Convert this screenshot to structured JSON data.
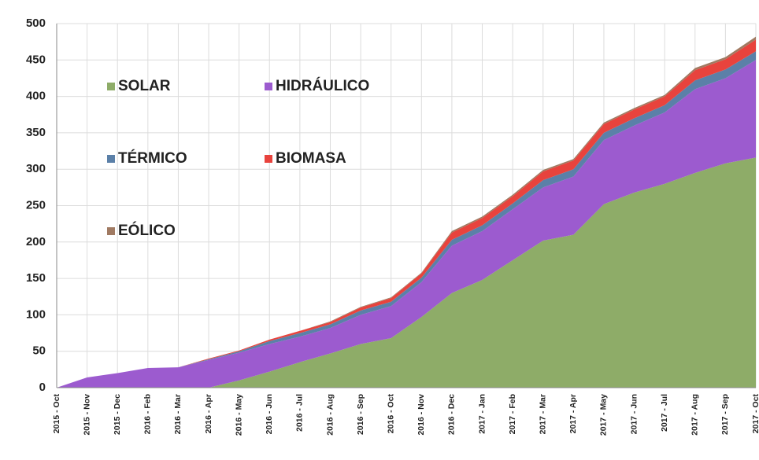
{
  "chart_data": {
    "type": "stacked_area",
    "categories": [
      "2015 - Oct",
      "2015 - Nov",
      "2015 - Dec",
      "2016 - Feb",
      "2016 - Mar",
      "2016 - Apr",
      "2016 - May",
      "2016 - Jun",
      "2016 - Jul",
      "2016 - Aug",
      "2016 - Sep",
      "2016 - Oct",
      "2016 - Nov",
      "2016 - Dec",
      "2017 - Jan",
      "2017 - Feb",
      "2017 - Mar",
      "2017 - Apr",
      "2017 - May",
      "2017 - Jun",
      "2017 - Jul",
      "2017 - Aug",
      "2017 - Sep",
      "2017 - Oct"
    ],
    "series": [
      {
        "name": "SOLAR",
        "color": "#8eac68",
        "values": [
          0,
          0,
          0,
          0,
          0,
          0,
          10,
          22,
          35,
          47,
          60,
          68,
          97,
          130,
          148,
          175,
          202,
          210,
          252,
          268,
          280,
          295,
          308,
          316
        ]
      },
      {
        "name": "HIDRÁULICO",
        "color": "#9c5bcf",
        "values": [
          0,
          14,
          20,
          27,
          28,
          38,
          38,
          38,
          35,
          35,
          40,
          44,
          48,
          65,
          67,
          70,
          73,
          80,
          88,
          92,
          98,
          115,
          117,
          134
        ]
      },
      {
        "name": "TÉRMICO",
        "color": "#5b80a8",
        "values": [
          0,
          0,
          0,
          0,
          0,
          1,
          2,
          4,
          5,
          5,
          6,
          6,
          6,
          8,
          8,
          8,
          10,
          10,
          10,
          10,
          10,
          12,
          12,
          12
        ]
      },
      {
        "name": "BIOMASA",
        "color": "#e8433d",
        "values": [
          0,
          0,
          0,
          0,
          0,
          1,
          1,
          2,
          3,
          3,
          4,
          5,
          6,
          10,
          10,
          10,
          12,
          12,
          12,
          12,
          12,
          14,
          14,
          16
        ]
      },
      {
        "name": "EÓLICO",
        "color": "#a07a62",
        "values": [
          0,
          0,
          0,
          0,
          0,
          0,
          0,
          0,
          0,
          1,
          1,
          1,
          1,
          2,
          2,
          2,
          2,
          2,
          2,
          2,
          2,
          3,
          3,
          4
        ]
      }
    ],
    "ylim": [
      0,
      500
    ],
    "yticks": [
      0,
      50,
      100,
      150,
      200,
      250,
      300,
      350,
      400,
      450,
      500
    ],
    "grid": true,
    "legend": "upper left"
  }
}
